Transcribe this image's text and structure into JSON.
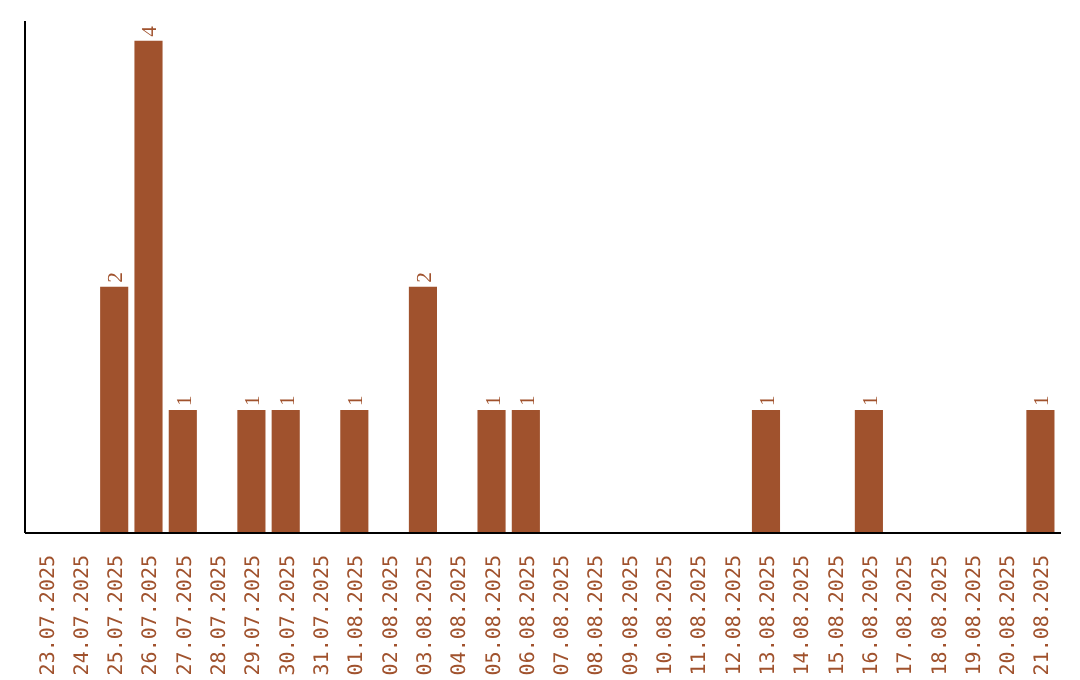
{
  "chart_data": {
    "type": "bar",
    "categories": [
      "23.07.2025",
      "24.07.2025",
      "25.07.2025",
      "26.07.2025",
      "27.07.2025",
      "28.07.2025",
      "29.07.2025",
      "30.07.2025",
      "31.07.2025",
      "01.08.2025",
      "02.08.2025",
      "03.08.2025",
      "04.08.2025",
      "05.08.2025",
      "06.08.2025",
      "07.08.2025",
      "08.08.2025",
      "09.08.2025",
      "10.08.2025",
      "11.08.2025",
      "12.08.2025",
      "13.08.2025",
      "14.08.2025",
      "15.08.2025",
      "16.08.2025",
      "17.08.2025",
      "18.08.2025",
      "19.08.2025",
      "20.08.2025",
      "21.08.2025"
    ],
    "values": [
      0,
      0,
      2,
      4,
      1,
      0,
      1,
      1,
      0,
      1,
      0,
      2,
      0,
      1,
      1,
      0,
      0,
      0,
      0,
      0,
      0,
      1,
      0,
      0,
      1,
      0,
      0,
      0,
      0,
      1
    ],
    "value_labels": [
      null,
      null,
      "2",
      "4",
      "1",
      null,
      "1",
      "1",
      null,
      "1",
      null,
      "2",
      null,
      "1",
      "1",
      null,
      null,
      null,
      null,
      null,
      null,
      "1",
      null,
      null,
      "1",
      null,
      null,
      null,
      null,
      "1"
    ],
    "color": "#a0522d",
    "grid": false,
    "tick_labels": "x"
  }
}
